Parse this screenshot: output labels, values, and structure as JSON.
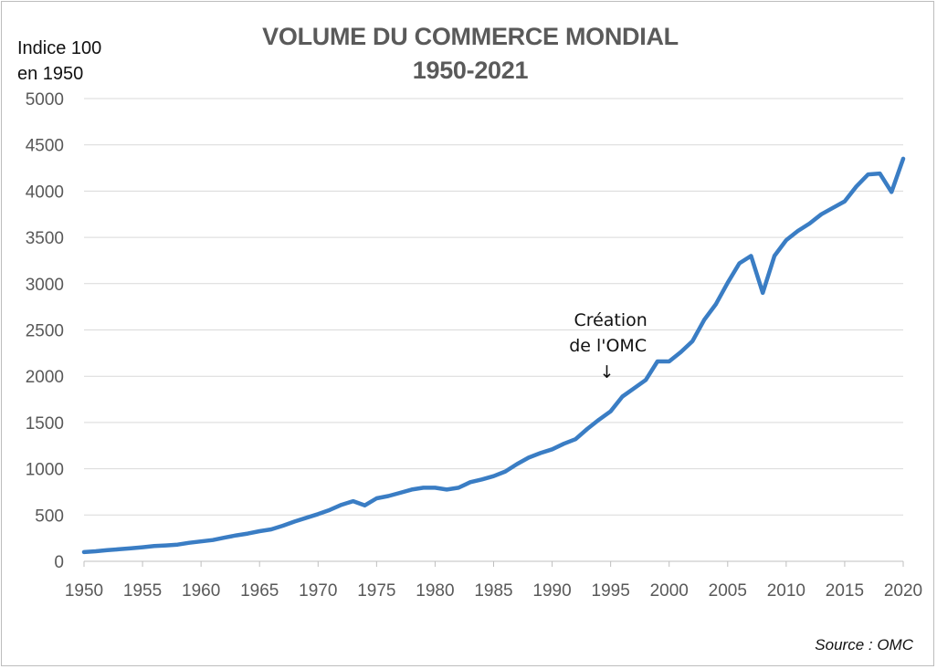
{
  "chart_data": {
    "type": "line",
    "title": "VOLUME DU COMMERCE MONDIAL",
    "subtitle": "1950-2021",
    "ylabel_line1": "Indice 100",
    "ylabel_line2": "en 1950",
    "source": "Source : OMC",
    "annotation": {
      "line1": "Création",
      "line2": "de l'OMC",
      "arrow": "↓",
      "x": 1995
    },
    "xlim": [
      1950,
      2020
    ],
    "ylim": [
      0,
      5000
    ],
    "x_ticks": [
      1950,
      1955,
      1960,
      1965,
      1970,
      1975,
      1980,
      1985,
      1990,
      1995,
      2000,
      2005,
      2010,
      2015,
      2020
    ],
    "y_ticks": [
      0,
      500,
      1000,
      1500,
      2000,
      2500,
      3000,
      3500,
      4000,
      4500,
      5000
    ],
    "grid": true,
    "line_color": "#3a7dc4",
    "series": [
      {
        "x": [
          1950,
          1951,
          1952,
          1953,
          1954,
          1955,
          1956,
          1957,
          1958,
          1959,
          1960,
          1961,
          1962,
          1963,
          1964,
          1965,
          1966,
          1967,
          1968,
          1969,
          1970,
          1971,
          1972,
          1973,
          1974,
          1975,
          1976,
          1977,
          1978,
          1979,
          1980,
          1981,
          1982,
          1983,
          1984,
          1985,
          1986,
          1987,
          1988,
          1989,
          1990,
          1991,
          1992,
          1993,
          1994,
          1995,
          1996,
          1997,
          1998,
          1999,
          2000,
          2001,
          2002,
          2003,
          2004,
          2005,
          2006,
          2007,
          2008,
          2009,
          2010,
          2011,
          2012,
          2013,
          2014,
          2015,
          2016,
          2017,
          2018,
          2019,
          2020
        ],
        "values": [
          100,
          108,
          120,
          130,
          140,
          152,
          165,
          172,
          180,
          200,
          215,
          230,
          255,
          280,
          300,
          325,
          345,
          385,
          430,
          470,
          510,
          555,
          610,
          650,
          605,
          680,
          705,
          740,
          775,
          795,
          795,
          775,
          795,
          855,
          885,
          920,
          970,
          1050,
          1120,
          1170,
          1210,
          1270,
          1320,
          1430,
          1530,
          1620,
          1780,
          1870,
          1960,
          2160,
          2160,
          2260,
          2380,
          2610,
          2780,
          3010,
          3220,
          3300,
          2900,
          3300,
          3470,
          3570,
          3650,
          3750,
          3820,
          3890,
          4050,
          4180,
          4190,
          3990,
          4350
        ]
      }
    ]
  }
}
